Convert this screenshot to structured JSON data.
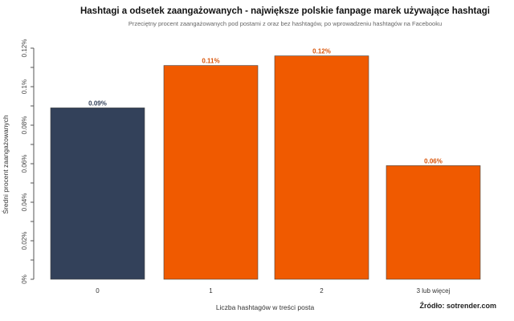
{
  "chart_data": {
    "type": "bar",
    "title": "Hashtagi a odsetek zaangażowanych - największe polskie fanpage marek używające hashtagi",
    "subtitle": "Przeciętny procent zaangażowanych pod postami z oraz bez hashtagów, po wprowadzeniu hashtagów na Facebooku",
    "xlabel": "Liczba hashtagów w treści posta",
    "ylabel": "Średni procent zaangażowanych",
    "source": "Źródło: sotrender.com",
    "categories": [
      "0",
      "1",
      "2",
      "3 lub więcej"
    ],
    "values": [
      0.089,
      0.111,
      0.116,
      0.059
    ],
    "data_labels": [
      "0.09%",
      "0.11%",
      "0.12%",
      "0.06%"
    ],
    "colors": [
      "#33415a",
      "#f05a00",
      "#f05a00",
      "#f05a00"
    ],
    "label_colors": [
      "#33415a",
      "#d9550a",
      "#d9550a",
      "#d9550a"
    ],
    "ylim": [
      0,
      0.12
    ],
    "yticks": [
      0,
      0.02,
      0.04,
      0.06,
      0.08,
      0.1,
      0.12
    ],
    "ytick_labels": [
      "0%",
      "0.02%",
      "0.04%",
      "0.06%",
      "0.08%",
      "0.1%",
      "0.12%"
    ],
    "grid": false,
    "legend": "none"
  }
}
